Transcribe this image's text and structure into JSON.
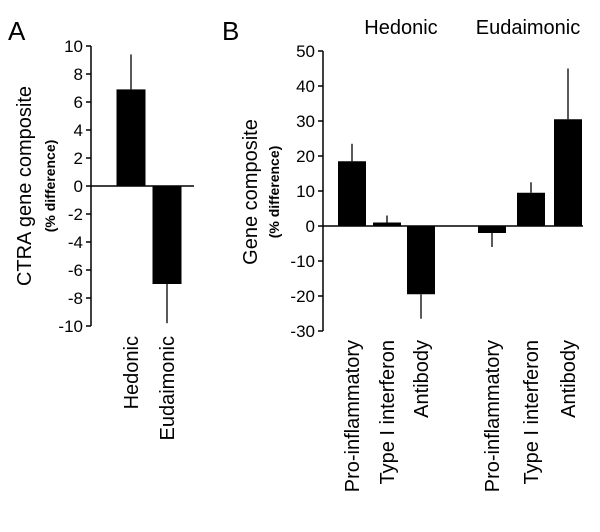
{
  "panels": {
    "a_letter": "A",
    "b_letter": "B"
  },
  "chart_data": [
    {
      "type": "bar",
      "panel": "A",
      "ylabel": "CTRA gene composite",
      "ylabel_sub": "(% difference)",
      "ylim": [
        -10,
        10
      ],
      "yticks": [
        -10,
        -8,
        -6,
        -4,
        -2,
        0,
        2,
        4,
        6,
        8,
        10
      ],
      "categories": [
        "Hedonic",
        "Eudaimonic"
      ],
      "values": [
        6.9,
        -7.0
      ],
      "error_plus": [
        2.5,
        0
      ],
      "error_minus": [
        0,
        2.8
      ],
      "bar_color": "#000000"
    },
    {
      "type": "bar",
      "panel": "B",
      "ylabel": "Gene composite",
      "ylabel_sub": "(% difference)",
      "ylim": [
        -30,
        50
      ],
      "yticks": [
        -30,
        -20,
        -10,
        0,
        10,
        20,
        30,
        40,
        50
      ],
      "groups": [
        "Hedonic",
        "Eudaimonic"
      ],
      "categories": [
        "Pro-inflammatory",
        "Type I interferon",
        "Antibody",
        "Pro-inflammatory",
        "Type I interferon",
        "Antibody"
      ],
      "values": [
        18.5,
        1.0,
        -19.5,
        -2.0,
        9.5,
        30.5
      ],
      "error_plus": [
        5.0,
        2.0,
        0,
        0,
        3.0,
        14.5
      ],
      "error_minus": [
        0,
        0,
        7.0,
        4.0,
        0,
        0
      ],
      "bar_color": "#000000"
    }
  ]
}
